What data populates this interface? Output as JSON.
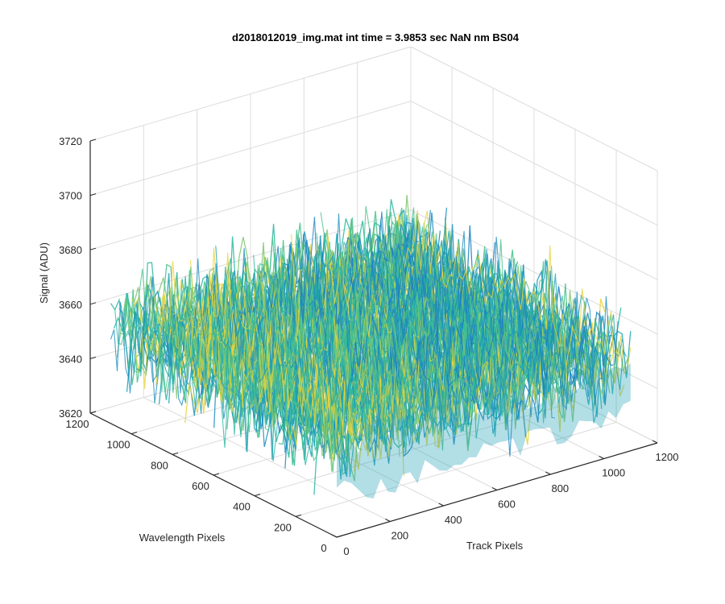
{
  "chart_data": {
    "type": "surface3d",
    "title": "d2018012019_img.mat int time = 3.9853 sec  NaN nm BS04",
    "xlabel": "Track Pixels",
    "ylabel": "Wavelength Pixels",
    "zlabel": "Signal (ADU)",
    "xlim": [
      0,
      1200
    ],
    "ylim": [
      0,
      1200
    ],
    "zlim": [
      3620,
      3720
    ],
    "xticks": [
      "0",
      "200",
      "400",
      "600",
      "800",
      "1000",
      "1200"
    ],
    "yticks": [
      "0",
      "200",
      "400",
      "600",
      "800",
      "1000",
      "1200"
    ],
    "zticks": [
      "3620",
      "3640",
      "3660",
      "3680",
      "3700",
      "3720"
    ],
    "grid": true,
    "surface": {
      "x_range": [
        0,
        1100
      ],
      "y_range": [
        0,
        1100
      ],
      "mean_signal": 3655,
      "noise_range": [
        3630,
        3700
      ],
      "colormap": "parula"
    },
    "colors": {
      "axis": "#262626",
      "grid": "#dcdcdc",
      "surface_low": "#1f8fbd",
      "surface_mid": "#2ab7a0",
      "surface_high": "#e8d33a"
    }
  }
}
